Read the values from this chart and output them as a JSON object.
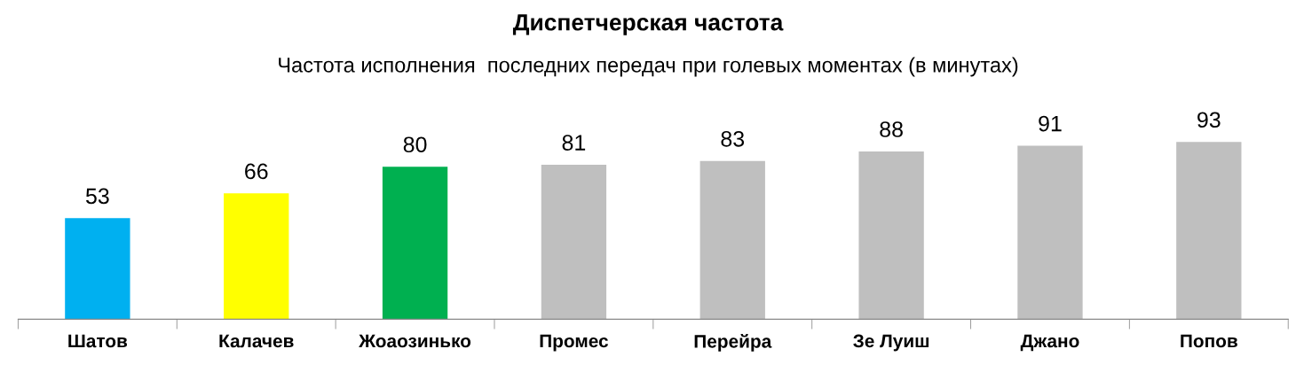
{
  "chart_data": {
    "type": "bar",
    "title": "Диспетчерская частота",
    "subtitle": "Частота исполнения  последних передач при голевых моментах (в минутах)",
    "categories": [
      "Шатов",
      "Калачев",
      "Жоаозинько",
      "Промес",
      "Перейра",
      "Зе Луиш",
      "Джано",
      "Попов"
    ],
    "values": [
      53,
      66,
      80,
      81,
      83,
      88,
      91,
      93
    ],
    "colors": [
      "#00b0f0",
      "#ffff00",
      "#00b050",
      "#bfbfbf",
      "#bfbfbf",
      "#bfbfbf",
      "#bfbfbf",
      "#bfbfbf"
    ],
    "data_labels": true,
    "grid": false,
    "legend": false
  }
}
